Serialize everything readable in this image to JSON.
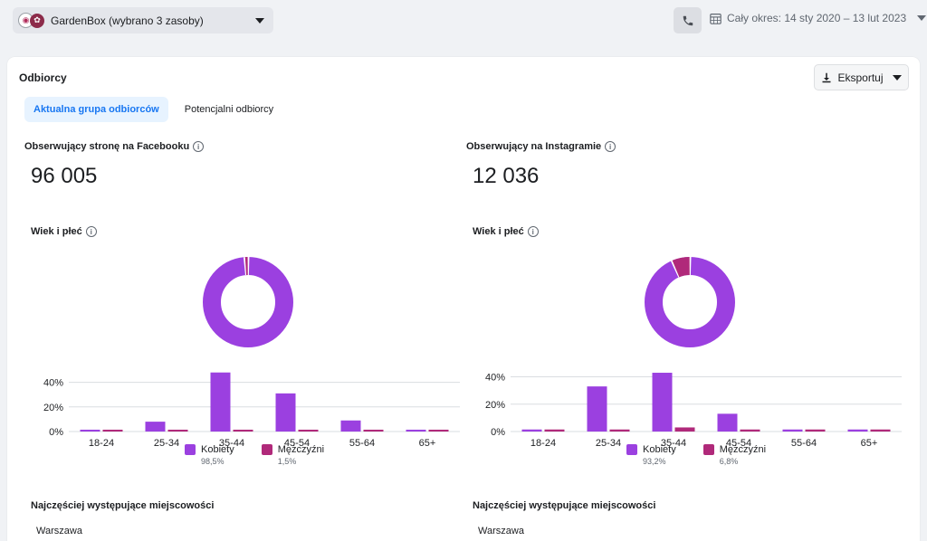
{
  "topbar": {
    "account_label": "GardenBox (wybrano 3 zasoby)",
    "date_range": "Cały okres: 14 sty 2020 – 13 lut 2023"
  },
  "card": {
    "title": "Odbiorcy",
    "export_label": "Eksportuj",
    "tabs": [
      {
        "label": "Aktualna grupa odbiorców",
        "active": true
      },
      {
        "label": "Potencjalni odbiorcy",
        "active": false
      }
    ]
  },
  "facebook": {
    "followers_title": "Obserwujący stronę na Facebooku",
    "followers_value": "96 005",
    "age_gender_title": "Wiek i płeć",
    "cities_title": "Najczęściej występujące miejscowości",
    "top_city": "Warszawa"
  },
  "instagram": {
    "followers_title": "Obserwujący na Instagramie",
    "followers_value": "12 036",
    "age_gender_title": "Wiek i płeć",
    "cities_title": "Najczęściej występujące miejscowości",
    "top_city": "Warszawa"
  },
  "colors": {
    "women": "#9b40e0",
    "men": "#b0297a",
    "accent": "#1877f2"
  },
  "chart_data": [
    {
      "type": "bar",
      "categories": [
        "18-24",
        "25-34",
        "35-44",
        "45-54",
        "55-64",
        "65+"
      ],
      "series": [
        {
          "name": "Kobiety",
          "values": [
            1.5,
            8,
            48,
            31,
            9,
            1.5
          ],
          "total_label": "98,5%",
          "share": 98.5
        },
        {
          "name": "Mężczyźni",
          "values": [
            1.5,
            1.5,
            1.5,
            1.5,
            1.5,
            1.5
          ],
          "total_label": "1,5%",
          "share": 1.5
        }
      ],
      "yticks": [
        "0%",
        "20%",
        "40%"
      ],
      "ylim": [
        0,
        50
      ]
    },
    {
      "type": "bar",
      "categories": [
        "18-24",
        "25-34",
        "35-44",
        "45-54",
        "55-64",
        "65+"
      ],
      "series": [
        {
          "name": "Kobiety",
          "values": [
            1.5,
            33,
            43,
            13,
            1.5,
            1.5
          ],
          "total_label": "93,2%",
          "share": 93.2
        },
        {
          "name": "Mężczyźni",
          "values": [
            1.5,
            1.5,
            3,
            1.5,
            1.5,
            1.5
          ],
          "total_label": "6,8%",
          "share": 6.8
        }
      ],
      "yticks": [
        "0%",
        "20%",
        "40%"
      ],
      "ylim": [
        0,
        45
      ]
    }
  ]
}
